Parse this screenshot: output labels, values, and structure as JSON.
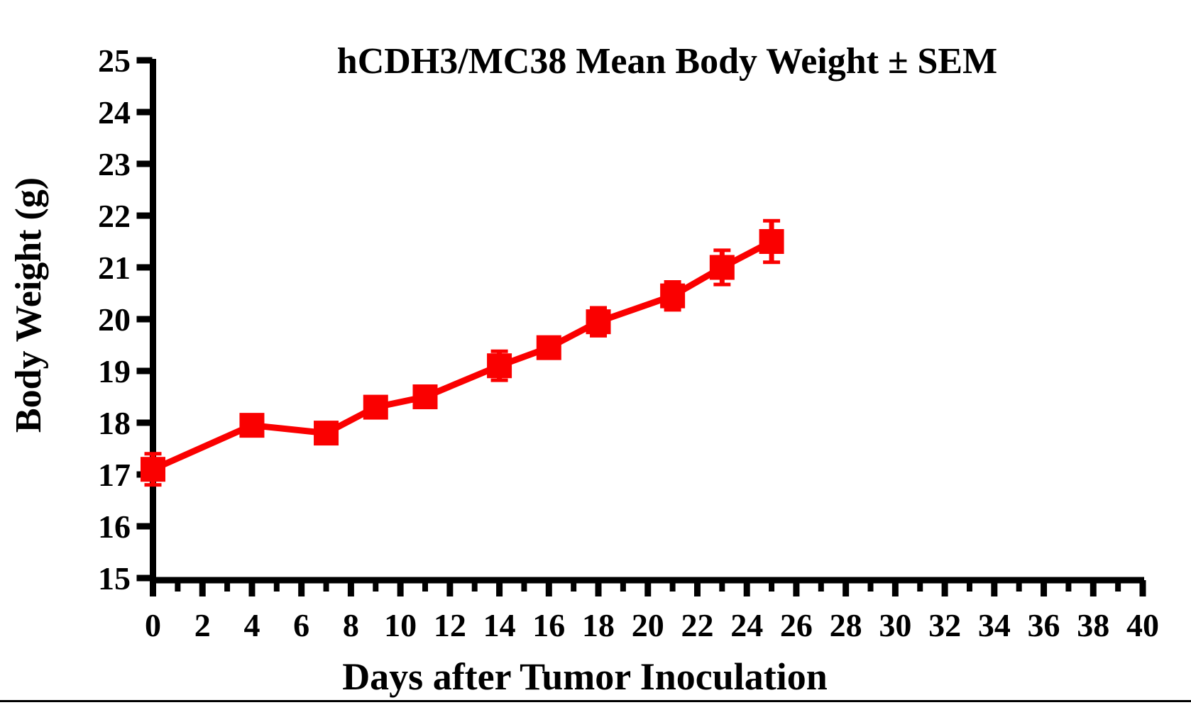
{
  "page": {
    "background": "#FFFFFF",
    "bottom_rule_color": "#000000"
  },
  "chart_data": {
    "type": "line",
    "title": "hCDH3/MC38 Mean Body Weight ± SEM",
    "xlabel": "Days after Tumor Inoculation",
    "ylabel": "Body Weight (g)",
    "xlim": [
      0,
      40
    ],
    "ylim": [
      15,
      25
    ],
    "x_major_tick_step": 2,
    "x_minor_tick_step": 1,
    "y_major_tick_step": 1,
    "x_major_tick_labels": [
      "0",
      "2",
      "4",
      "6",
      "8",
      "10",
      "12",
      "14",
      "16",
      "18",
      "20",
      "22",
      "24",
      "26",
      "28",
      "30",
      "32",
      "34",
      "36",
      "38",
      "40"
    ],
    "y_tick_labels": [
      "15",
      "16",
      "17",
      "18",
      "19",
      "20",
      "21",
      "22",
      "23",
      "24",
      "25"
    ],
    "grid": false,
    "legend_position": "none",
    "axis_color": "#000000",
    "series": [
      {
        "name": "hCDH3/MC38 mean body weight",
        "color": "#FA0000",
        "marker": "square",
        "error_bars": "sem",
        "x": [
          0,
          4,
          7,
          9,
          11,
          14,
          16,
          18,
          21,
          23,
          25
        ],
        "y": [
          17.1,
          17.95,
          17.8,
          18.3,
          18.5,
          19.1,
          19.45,
          19.95,
          20.45,
          21.0,
          21.5
        ],
        "sem": [
          0.3,
          0.15,
          0.15,
          0.15,
          0.15,
          0.28,
          0.15,
          0.27,
          0.27,
          0.33,
          0.4
        ]
      }
    ]
  }
}
